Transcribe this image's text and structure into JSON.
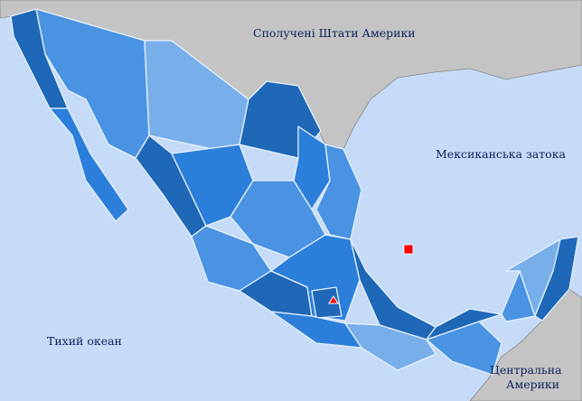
{
  "labels": {
    "usa": "Сполучені Штати Америки",
    "gulf": "Мексиканська затока",
    "pacific": "Тихий океан",
    "central_america_1": "Центральна",
    "central_america_2": "Америки"
  },
  "colors": {
    "sea": "#c6dbf7",
    "foreign_land": "#c4c4c4",
    "shade_dark": "#1f68b8",
    "shade_mid": "#2b7fdb",
    "shade_light": "#4a93e3",
    "shade_lighter": "#78afea",
    "marker": "#ff0000"
  },
  "markers": [
    {
      "name": "square-marker",
      "shape": "square"
    },
    {
      "name": "capital-marker",
      "shape": "triangle"
    }
  ]
}
